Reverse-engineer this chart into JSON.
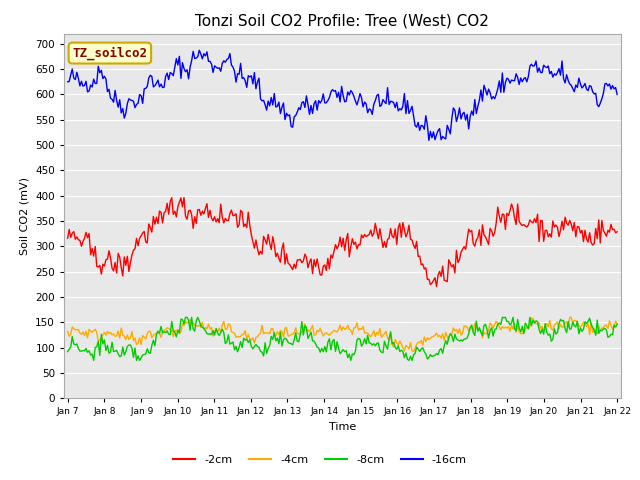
{
  "title": "Tonzi Soil CO2 Profile: Tree (West) CO2",
  "xlabel": "Time",
  "ylabel": "Soil CO2 (mV)",
  "ylim": [
    0,
    720
  ],
  "yticks": [
    0,
    50,
    100,
    150,
    200,
    250,
    300,
    350,
    400,
    450,
    500,
    550,
    600,
    650,
    700
  ],
  "date_labels": [
    "Jan 7",
    "Jan 8",
    " Jan 9",
    "Jan 10",
    "Jan 11",
    "Jan 12",
    "Jan 13",
    "Jan 14",
    "Jan 15",
    "Jan 16",
    "Jan 17",
    "Jan 18",
    "Jan 19",
    "Jan 20",
    "Jan 21",
    "Jan 22"
  ],
  "num_points": 360,
  "legend_labels": [
    "-2cm",
    "-4cm",
    "-8cm",
    "-16cm"
  ],
  "legend_colors": [
    "#ff0000",
    "#ffaa00",
    "#00cc00",
    "#0000ff"
  ],
  "watermark_text": "TZ_soilco2",
  "watermark_bg": "#ffffcc",
  "watermark_border": "#ccaa00",
  "bg_color": "#e8e8e8",
  "line_width": 1.0,
  "title_fontsize": 11
}
